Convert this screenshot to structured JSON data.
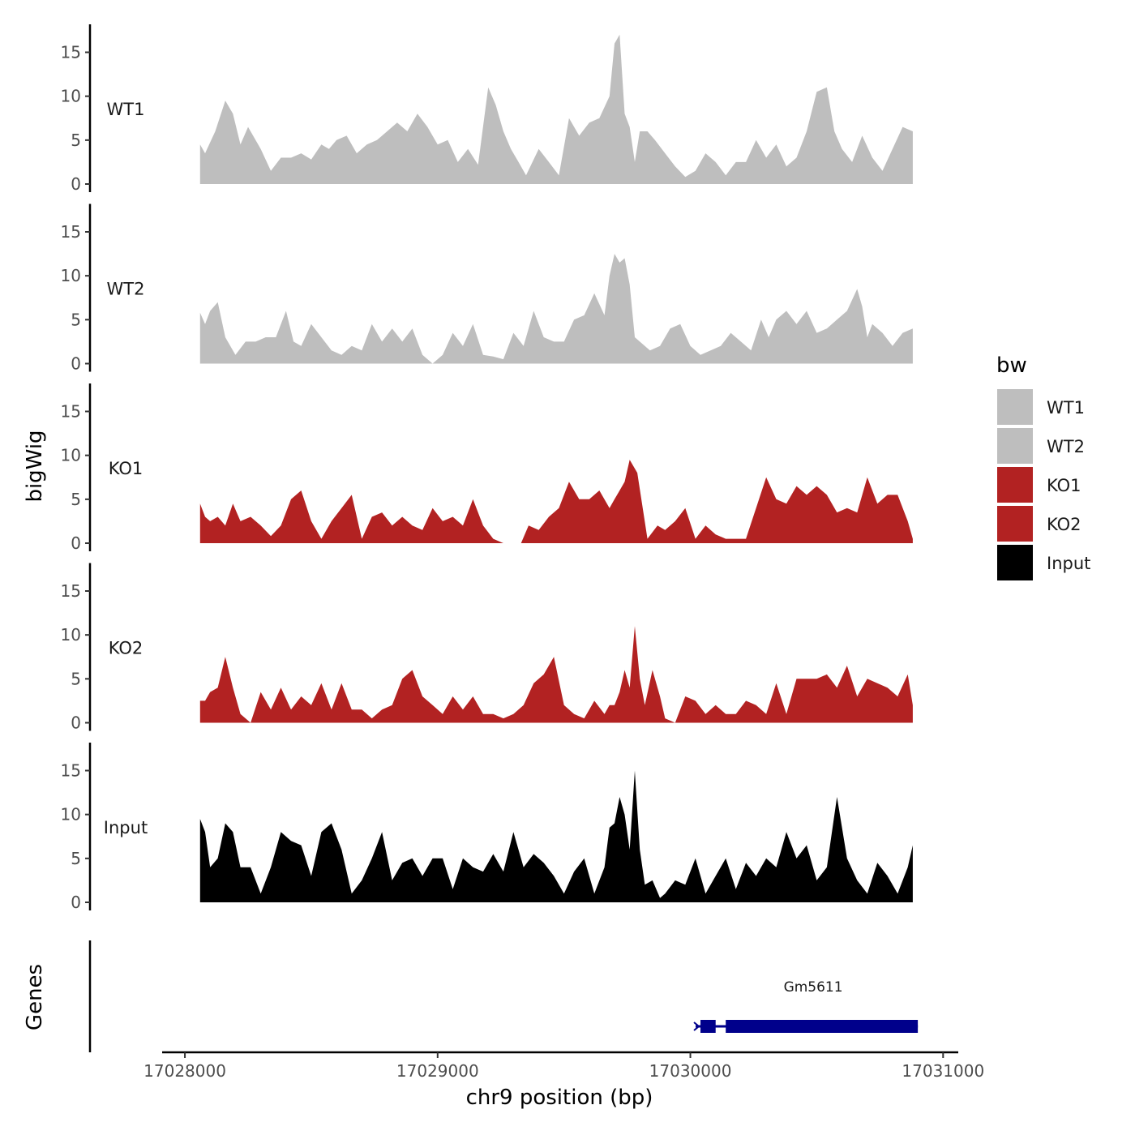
{
  "chart_data": {
    "type": "area",
    "y_axis_title": "bigWig",
    "genes_axis_title": "Genes",
    "x_axis_title": "chr9 position (bp)",
    "xlim": [
      17027910,
      17031060
    ],
    "x_ticks": [
      17028000,
      17029000,
      17030000,
      17031000
    ],
    "x_tick_labels": [
      "17028000",
      "17029000",
      "17030000",
      "17031000"
    ],
    "ylim": [
      0,
      18
    ],
    "y_ticks": [
      0,
      5,
      10,
      15
    ],
    "y_tick_labels": [
      "0",
      "5",
      "10",
      "15"
    ],
    "legend": {
      "title": "bw",
      "position": "right",
      "entries": [
        {
          "label": "WT1",
          "color": "#bebebe"
        },
        {
          "label": "WT2",
          "color": "#bebebe"
        },
        {
          "label": "KO1",
          "color": "#b22222"
        },
        {
          "label": "KO2",
          "color": "#b22222"
        },
        {
          "label": "Input",
          "color": "#000000"
        }
      ]
    },
    "tracks": [
      {
        "name": "WT1",
        "color": "#bebebe",
        "x": [
          17028060,
          17028080,
          17028120,
          17028160,
          17028190,
          17028220,
          17028250,
          17028300,
          17028340,
          17028380,
          17028420,
          17028460,
          17028500,
          17028540,
          17028570,
          17028600,
          17028640,
          17028680,
          17028720,
          17028760,
          17028800,
          17028840,
          17028880,
          17028920,
          17028960,
          17029000,
          17029040,
          17029080,
          17029120,
          17029160,
          17029200,
          17029230,
          17029260,
          17029290,
          17029320,
          17029350,
          17029400,
          17029440,
          17029480,
          17029520,
          17029560,
          17029600,
          17029640,
          17029680,
          17029700,
          17029720,
          17029740,
          17029760,
          17029780,
          17029800,
          17029830,
          17029860,
          17029900,
          17029940,
          17029980,
          17030020,
          17030060,
          17030100,
          17030140,
          17030180,
          17030220,
          17030260,
          17030300,
          17030340,
          17030380,
          17030420,
          17030460,
          17030500,
          17030540,
          17030570,
          17030600,
          17030640,
          17030680,
          17030720,
          17030760,
          17030800,
          17030840,
          17030880
        ],
        "y": [
          4.5,
          3.5,
          6,
          9.5,
          8,
          4.5,
          6.5,
          4,
          1.5,
          3,
          3,
          3.5,
          2.8,
          4.5,
          4,
          5,
          5.5,
          3.5,
          4.5,
          5,
          6,
          7,
          6,
          8,
          6.5,
          4.5,
          5,
          2.5,
          4,
          2.2,
          11,
          9,
          6,
          4,
          2.5,
          1,
          4,
          2.5,
          1,
          7.5,
          5.5,
          7,
          7.5,
          10,
          16,
          17,
          8,
          6.5,
          2.5,
          6,
          6,
          5,
          3.5,
          2,
          0.8,
          1.5,
          3.5,
          2.5,
          1,
          2.5,
          2.5,
          5,
          3,
          4.5,
          2,
          3,
          6,
          10.5,
          11,
          6,
          4,
          2.5,
          5.5,
          3,
          1.5,
          4,
          6.5,
          6
        ]
      },
      {
        "name": "WT2",
        "color": "#bebebe",
        "x": [
          17028060,
          17028080,
          17028100,
          17028130,
          17028160,
          17028200,
          17028240,
          17028280,
          17028320,
          17028360,
          17028400,
          17028430,
          17028460,
          17028500,
          17028540,
          17028580,
          17028620,
          17028660,
          17028700,
          17028740,
          17028780,
          17028820,
          17028860,
          17028900,
          17028940,
          17028980,
          17029020,
          17029060,
          17029100,
          17029140,
          17029180,
          17029220,
          17029260,
          17029300,
          17029340,
          17029380,
          17029420,
          17029460,
          17029500,
          17029540,
          17029580,
          17029620,
          17029660,
          17029680,
          17029700,
          17029720,
          17029740,
          17029760,
          17029780,
          17029800,
          17029840,
          17029880,
          17029920,
          17029960,
          17030000,
          17030040,
          17030080,
          17030120,
          17030160,
          17030200,
          17030240,
          17030280,
          17030310,
          17030340,
          17030380,
          17030420,
          17030460,
          17030500,
          17030540,
          17030580,
          17030620,
          17030660,
          17030680,
          17030700,
          17030720,
          17030760,
          17030800,
          17030840,
          17030880
        ],
        "y": [
          5.8,
          4.5,
          6,
          7,
          3,
          1,
          2.5,
          2.5,
          3,
          3,
          6,
          2.5,
          2,
          4.5,
          3,
          1.5,
          1,
          2,
          1.5,
          4.5,
          2.5,
          4,
          2.5,
          4,
          1,
          0,
          1,
          3.5,
          2,
          4.5,
          1,
          0.8,
          0.5,
          3.5,
          2,
          6,
          3,
          2.5,
          2.5,
          5,
          5.5,
          8,
          5.5,
          10,
          12.5,
          11.5,
          12,
          9,
          3,
          2.5,
          1.5,
          2,
          4,
          4.5,
          2,
          1,
          1.5,
          2,
          3.5,
          2.5,
          1.5,
          5,
          3,
          5,
          6,
          4.5,
          6,
          3.5,
          4,
          5,
          6,
          8.5,
          6.5,
          3,
          4.5,
          3.5,
          2,
          3.5,
          4
        ]
      },
      {
        "name": "KO1",
        "color": "#b22222",
        "x": [
          17028060,
          17028080,
          17028100,
          17028130,
          17028160,
          17028190,
          17028220,
          17028260,
          17028300,
          17028340,
          17028380,
          17028420,
          17028460,
          17028500,
          17028540,
          17028580,
          17028620,
          17028660,
          17028700,
          17028740,
          17028780,
          17028820,
          17028860,
          17028900,
          17028940,
          17028980,
          17029020,
          17029060,
          17029100,
          17029140,
          17029180,
          17029220,
          17029260,
          17029300,
          17029310,
          17029330,
          17029360,
          17029400,
          17029440,
          17029480,
          17029520,
          17029560,
          17029600,
          17029640,
          17029680,
          17029700,
          17029720,
          17029740,
          17029760,
          17029790,
          17029830,
          17029870,
          17029900,
          17029940,
          17029980,
          17030020,
          17030060,
          17030100,
          17030140,
          17030180,
          17030220,
          17030260,
          17030300,
          17030340,
          17030380,
          17030420,
          17030460,
          17030500,
          17030540,
          17030580,
          17030620,
          17030660,
          17030700,
          17030740,
          17030780,
          17030820,
          17030860,
          17030880
        ],
        "y": [
          4.5,
          3,
          2.5,
          3,
          2,
          4.5,
          2.5,
          3,
          2,
          0.8,
          2,
          5,
          6,
          2.5,
          0.5,
          2.5,
          4,
          5.5,
          0.5,
          3,
          3.5,
          2,
          3,
          2,
          1.5,
          4,
          2.5,
          3,
          2,
          5,
          2,
          0.5,
          0,
          0,
          0,
          0,
          2,
          1.5,
          3,
          4,
          7,
          5,
          5,
          6,
          4,
          5,
          6,
          7,
          9.5,
          8,
          0.5,
          2,
          1.5,
          2.5,
          4,
          0.5,
          2,
          1,
          0.5,
          0.5,
          0.5,
          4,
          7.5,
          5,
          4.5,
          6.5,
          5.5,
          6.5,
          5.5,
          3.5,
          4,
          3.5,
          7.5,
          4.5,
          5.5,
          5.5,
          2.5,
          0.5
        ]
      },
      {
        "name": "KO2",
        "color": "#b22222",
        "x": [
          17028060,
          17028080,
          17028100,
          17028130,
          17028160,
          17028190,
          17028220,
          17028260,
          17028300,
          17028340,
          17028380,
          17028420,
          17028460,
          17028500,
          17028540,
          17028580,
          17028620,
          17028660,
          17028700,
          17028740,
          17028780,
          17028820,
          17028860,
          17028900,
          17028940,
          17028980,
          17029020,
          17029060,
          17029100,
          17029140,
          17029180,
          17029220,
          17029260,
          17029300,
          17029340,
          17029380,
          17029420,
          17029460,
          17029500,
          17029540,
          17029580,
          17029620,
          17029660,
          17029680,
          17029700,
          17029720,
          17029740,
          17029760,
          17029780,
          17029800,
          17029820,
          17029850,
          17029880,
          17029900,
          17029940,
          17029980,
          17030020,
          17030060,
          17030100,
          17030140,
          17030180,
          17030220,
          17030260,
          17030300,
          17030340,
          17030380,
          17030420,
          17030460,
          17030500,
          17030540,
          17030580,
          17030620,
          17030660,
          17030700,
          17030740,
          17030780,
          17030820,
          17030860,
          17030880
        ],
        "y": [
          2.5,
          2.5,
          3.5,
          4,
          7.5,
          4,
          1,
          0,
          3.5,
          1.5,
          4,
          1.5,
          3,
          2,
          4.5,
          1.5,
          4.5,
          1.5,
          1.5,
          0.5,
          1.5,
          2,
          5,
          6,
          3,
          2,
          1,
          3,
          1.5,
          3,
          1,
          1,
          0.5,
          1,
          2,
          4.5,
          5.5,
          7.5,
          2,
          1,
          0.5,
          2.5,
          1,
          2,
          2,
          3.5,
          6,
          4,
          11,
          5,
          2,
          6,
          3,
          0.5,
          0,
          3,
          2.5,
          1,
          2,
          1,
          1,
          2.5,
          2,
          1,
          4.5,
          1,
          5,
          5,
          5,
          5.5,
          4,
          6.5,
          3,
          5,
          4.5,
          4,
          3,
          5.5,
          2
        ]
      },
      {
        "name": "Input",
        "color": "#000000",
        "x": [
          17028060,
          17028080,
          17028100,
          17028130,
          17028160,
          17028190,
          17028220,
          17028260,
          17028300,
          17028340,
          17028380,
          17028420,
          17028460,
          17028500,
          17028540,
          17028580,
          17028620,
          17028660,
          17028700,
          17028740,
          17028780,
          17028820,
          17028860,
          17028900,
          17028940,
          17028980,
          17029020,
          17029060,
          17029100,
          17029140,
          17029180,
          17029220,
          17029260,
          17029300,
          17029340,
          17029380,
          17029420,
          17029460,
          17029500,
          17029540,
          17029580,
          17029620,
          17029660,
          17029680,
          17029700,
          17029720,
          17029740,
          17029760,
          17029780,
          17029800,
          17029820,
          17029850,
          17029880,
          17029900,
          17029940,
          17029980,
          17030020,
          17030060,
          17030100,
          17030140,
          17030180,
          17030220,
          17030260,
          17030300,
          17030340,
          17030380,
          17030420,
          17030460,
          17030500,
          17030540,
          17030580,
          17030620,
          17030660,
          17030700,
          17030740,
          17030780,
          17030820,
          17030860,
          17030880
        ],
        "y": [
          9.5,
          8,
          4,
          5,
          9,
          8,
          4,
          4,
          1,
          4,
          8,
          7,
          6.5,
          3,
          8,
          9,
          6,
          1,
          2.5,
          5,
          8,
          2.5,
          4.5,
          5,
          3,
          5,
          5,
          1.5,
          5,
          4,
          3.5,
          5.5,
          3.5,
          8,
          4,
          5.5,
          4.5,
          3,
          1,
          3.5,
          5,
          1,
          4,
          8.5,
          9,
          12,
          10,
          6,
          15,
          6,
          2,
          2.5,
          0.5,
          1,
          2.5,
          2,
          5,
          1,
          3,
          5,
          1.5,
          4.5,
          3,
          5,
          4,
          8,
          5,
          6.5,
          2.5,
          4,
          12,
          5,
          2.5,
          1,
          4.5,
          3,
          1,
          4,
          6.5
        ]
      }
    ],
    "gene": {
      "name": "Gm5611",
      "color": "#00008b",
      "start": 17030040,
      "end": 17030900,
      "exons": [
        [
          17030040,
          17030100
        ],
        [
          17030140,
          17030900
        ]
      ],
      "strand": "-"
    }
  }
}
